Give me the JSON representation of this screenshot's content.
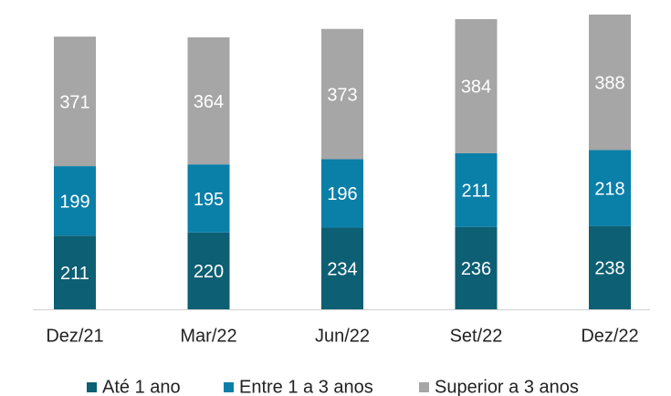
{
  "chart_data": {
    "type": "stacked_bar",
    "categories": [
      "Dez/21",
      "Mar/22",
      "Jun/22",
      "Set/22",
      "Dez/22"
    ],
    "series": [
      {
        "name": "Até 1 ano",
        "color": "#0d5f73",
        "values": [
          211,
          220,
          234,
          236,
          238
        ]
      },
      {
        "name": "Entre 1 a 3 anos",
        "color": "#0a7fa8",
        "values": [
          199,
          195,
          196,
          211,
          218
        ]
      },
      {
        "name": "Superior a 3 anos",
        "color": "#a6a6a6",
        "values": [
          371,
          364,
          373,
          384,
          388
        ]
      }
    ],
    "legend": "bottom"
  }
}
